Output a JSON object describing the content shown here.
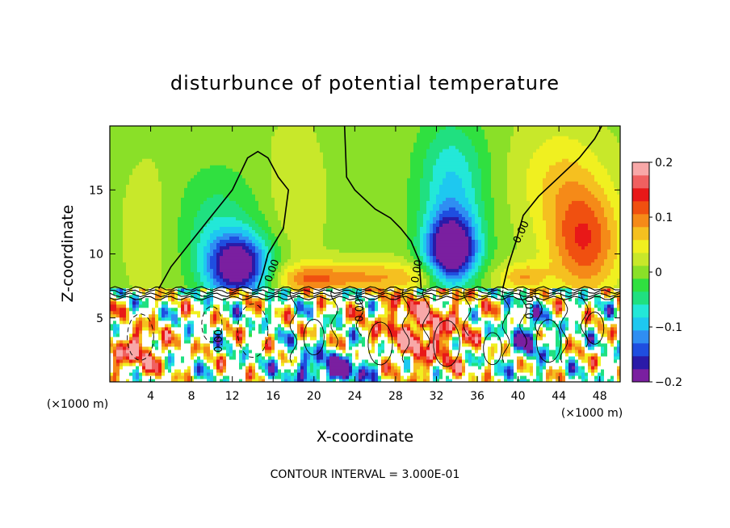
{
  "chart_data": {
    "type": "heatmap",
    "title": "disturbunce of potential temperature",
    "xlabel": "X-coordinate",
    "ylabel": "Z-coordinate",
    "x_unit_note": "(×1000 m)",
    "xlim": [
      0,
      50
    ],
    "ylim": [
      0,
      20
    ],
    "x_ticks": [
      4,
      8,
      12,
      16,
      20,
      24,
      28,
      32,
      36,
      40,
      44,
      48
    ],
    "y_ticks": [
      5,
      10,
      15
    ],
    "colorbar": {
      "min": -0.2,
      "max": 0.2,
      "ticks": [
        0.2,
        0.1,
        0,
        -0.1,
        -0.2
      ],
      "tick_labels": [
        "0.2",
        "0.1",
        "0",
        "−0.1",
        "−0.2"
      ]
    },
    "contour_label": "0.00",
    "footnote": "CONTOUR INTERVAL = 3.000E-01",
    "description_values": {
      "cold_anomalies": [
        {
          "x": 12.5,
          "z": 9.0,
          "min": -0.2
        },
        {
          "x": 33.5,
          "z": 10.5,
          "min": -0.2
        }
      ],
      "warm_anomalies": [
        {
          "x": 46.5,
          "z": 11.0,
          "max": 0.1
        },
        {
          "x": 30.5,
          "z": 4.0,
          "max": 0.15
        }
      ],
      "boundary_layer_top_z": 7.3
    }
  },
  "palette": [
    "#7a1fa0",
    "#2a1aa8",
    "#1f4ee0",
    "#2f8ef2",
    "#1ec8f0",
    "#23e8d8",
    "#20e080",
    "#30e040",
    "#8ae028",
    "#c8e82a",
    "#f0f020",
    "#f5c020",
    "#f58a18",
    "#f05010",
    "#e81818",
    "#f06060",
    "#f8a8a8"
  ]
}
